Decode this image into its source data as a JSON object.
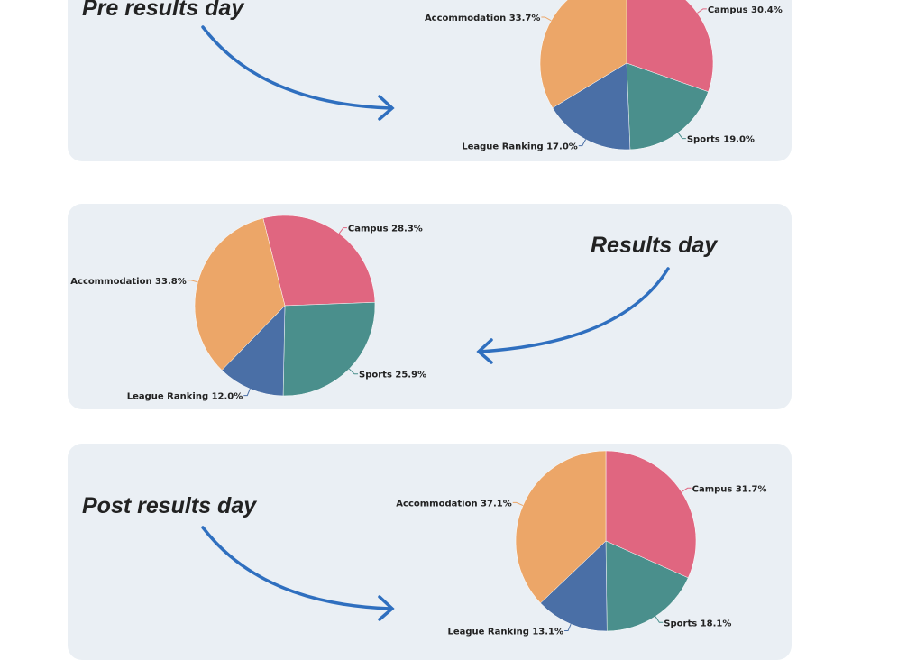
{
  "colors": {
    "Campus": "#e06680",
    "Sports": "#4a8f8c",
    "League Ranking": "#4a6fa6",
    "Accommodation": "#eca668",
    "card": "#eaeff4",
    "arrow": "#2f6fbf"
  },
  "arrow_icon": "curved-arrow",
  "chart_data": [
    {
      "type": "pie",
      "title": "Pre results day",
      "categories": [
        "Campus",
        "Sports",
        "League Ranking",
        "Accommodation"
      ],
      "values": [
        30.4,
        19.0,
        17.0,
        33.7
      ],
      "labels": [
        "Campus 30.4%",
        "Sports 19.0%",
        "League Ranking 17.0%",
        "Accommodation 33.7%"
      ]
    },
    {
      "type": "pie",
      "title": "Results day",
      "categories": [
        "Campus",
        "Sports",
        "League Ranking",
        "Accommodation"
      ],
      "values": [
        28.3,
        25.9,
        12.0,
        33.8
      ],
      "labels": [
        "Campus 28.3%",
        "Sports 25.9%",
        "League Ranking 12.0%",
        "Accommodation 33.8%"
      ]
    },
    {
      "type": "pie",
      "title": "Post results day",
      "categories": [
        "Campus",
        "Sports",
        "League Ranking",
        "Accommodation"
      ],
      "values": [
        31.7,
        18.1,
        13.1,
        37.1
      ],
      "labels": [
        "Campus 31.7%",
        "Sports 18.1%",
        "League Ranking 13.1%",
        "Accommodation 37.1%"
      ]
    }
  ]
}
